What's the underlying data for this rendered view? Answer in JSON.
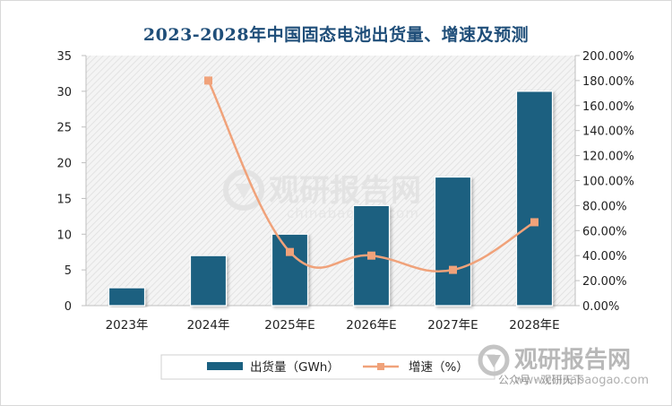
{
  "chart_data": {
    "type": "bar+line",
    "title": "2023-2028年中国固态电池出货量、增速及预测",
    "categories": [
      "2023年",
      "2024年",
      "2025年E",
      "2026年E",
      "2027年E",
      "2028年E"
    ],
    "series": [
      {
        "name": "出货量（GWh）",
        "type": "bar",
        "axis": "left",
        "values": [
          2.5,
          7,
          10,
          14,
          18,
          30
        ]
      },
      {
        "name": "增速（%）",
        "type": "line",
        "axis": "right",
        "values": [
          null,
          180,
          42.9,
          40,
          28.6,
          66.7
        ]
      }
    ],
    "left_axis": {
      "ylim": [
        0,
        35
      ],
      "ticks": [
        "0",
        "5",
        "10",
        "15",
        "20",
        "25",
        "30",
        "35"
      ]
    },
    "right_axis": {
      "ylim": [
        0,
        200
      ],
      "ticks": [
        "0.00%",
        "20.00%",
        "40.00%",
        "60.00%",
        "80.00%",
        "100.00%",
        "120.00%",
        "140.00%",
        "160.00%",
        "180.00%",
        "200.00%"
      ]
    },
    "legend": "bottom",
    "grid": false,
    "colors": {
      "bar": "#1a6080",
      "line": "#f0a27a",
      "title": "#1f4e79"
    }
  },
  "watermark": {
    "brand": "观研报告网",
    "domain": "chinabaogao.com"
  },
  "corner_logo": {
    "brand": "观研报告网",
    "domain": "www.chinabaogao.com",
    "overlay": "公众号 · 观研天下"
  }
}
